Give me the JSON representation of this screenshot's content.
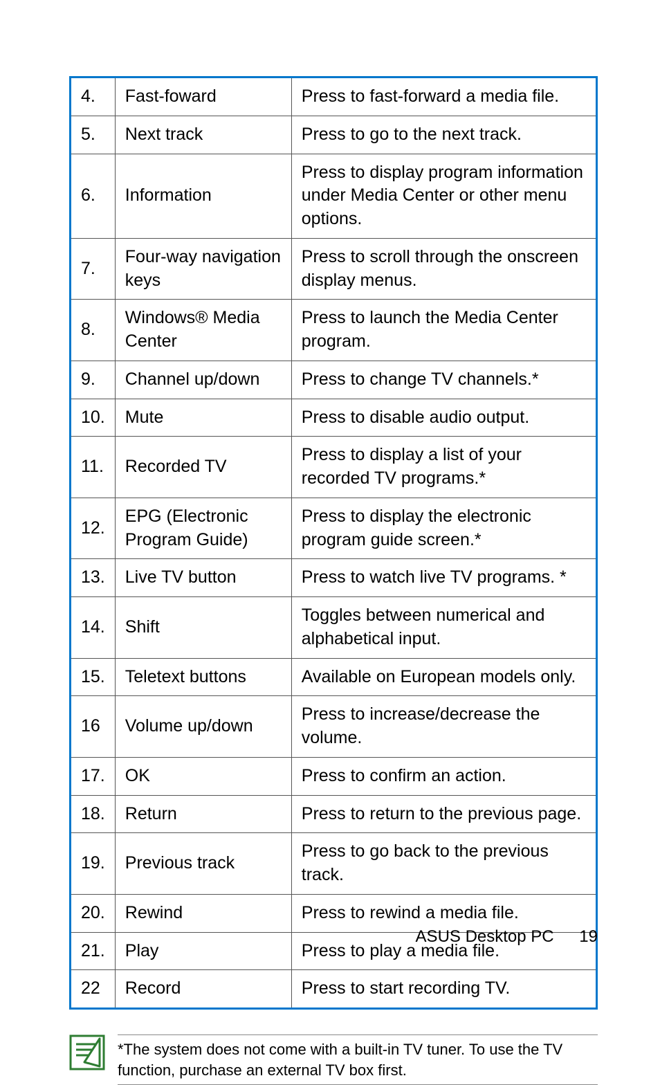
{
  "table": {
    "border_color": "#0077cc",
    "cell_border_color": "#555555",
    "rows": [
      {
        "num": "4.",
        "name": "Fast-foward",
        "desc": "Press to fast-forward a media file."
      },
      {
        "num": "5.",
        "name": "Next track",
        "desc": "Press to go to the next track."
      },
      {
        "num": "6.",
        "name": "Information",
        "desc": "Press to display program information under Media Center or other menu options."
      },
      {
        "num": "7.",
        "name": "Four-way navigation keys",
        "desc": "Press to scroll through the onscreen display menus."
      },
      {
        "num": "8.",
        "name": "Windows® Media Center",
        "desc": "Press to launch the Media Center program."
      },
      {
        "num": "9.",
        "name": "Channel up/down",
        "desc": "Press to change TV channels.*"
      },
      {
        "num": "10.",
        "name": "Mute",
        "desc": "Press to disable audio output."
      },
      {
        "num": "11.",
        "name": "Recorded TV",
        "desc": "Press to display a list of your recorded TV programs.*"
      },
      {
        "num": "12.",
        "name": "EPG (Electronic Program Guide)",
        "desc": "Press to display the electronic program guide screen.*"
      },
      {
        "num": "13.",
        "name": "Live TV button",
        "desc": "Press to watch live TV programs. *"
      },
      {
        "num": "14.",
        "name": "Shift",
        "desc": "Toggles between numerical and alphabetical input."
      },
      {
        "num": "15.",
        "name": "Teletext buttons",
        "desc": "Available on European models only."
      },
      {
        "num": "16",
        "name": "Volume up/down",
        "desc": "Press to increase/decrease the volume."
      },
      {
        "num": "17.",
        "name": "OK",
        "desc": "Press to confirm an action."
      },
      {
        "num": "18.",
        "name": "Return",
        "desc": "Press to return to the previous page."
      },
      {
        "num": "19.",
        "name": "Previous track",
        "desc": "Press to go back to the previous track."
      },
      {
        "num": "20.",
        "name": "Rewind",
        "desc": "Press to rewind a media file."
      },
      {
        "num": "21.",
        "name": "Play",
        "desc": "Press to play a media file."
      },
      {
        "num": "22",
        "name": "Record",
        "desc": "Press to start recording TV."
      }
    ]
  },
  "note": {
    "text": "*The system does not come with a built-in TV tuner. To use the TV function, purchase an external TV box first.",
    "icon_stroke": "#2e7d32"
  },
  "footer": {
    "title": "ASUS Desktop PC",
    "page_number": "19"
  }
}
